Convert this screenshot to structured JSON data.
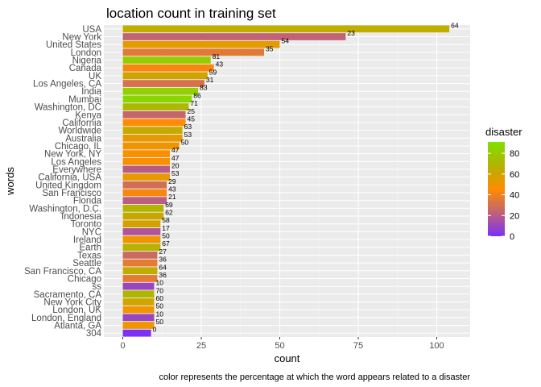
{
  "chart_data": {
    "type": "bar",
    "orientation": "horizontal",
    "title": "location count in training set",
    "xlabel": "count",
    "ylabel": "words",
    "caption": "color represents the percentage at which the word appears related to a disaster",
    "xlim": [
      0,
      110
    ],
    "xticks": [
      0,
      25,
      50,
      75,
      100
    ],
    "grid": true,
    "legend": {
      "title": "disaster",
      "placement": "right",
      "type": "colorbar",
      "ticks": [
        0,
        20,
        40,
        60,
        80
      ],
      "range": [
        0,
        91
      ],
      "colors": [
        "#7b2ff7",
        "#c06277",
        "#ff8c00",
        "#b3b300",
        "#80e000"
      ]
    },
    "bars": [
      {
        "word": "USA",
        "count": 104,
        "disaster": 64
      },
      {
        "word": "New York",
        "count": 71,
        "disaster": 23
      },
      {
        "word": "United States",
        "count": 50,
        "disaster": 54
      },
      {
        "word": "London",
        "count": 45,
        "disaster": 35
      },
      {
        "word": "Nigeria",
        "count": 28,
        "disaster": 81
      },
      {
        "word": "Canada",
        "count": 29,
        "disaster": 43
      },
      {
        "word": "UK",
        "count": 27,
        "disaster": 59
      },
      {
        "word": "Los Angeles, CA",
        "count": 26,
        "disaster": 31
      },
      {
        "word": "India",
        "count": 24,
        "disaster": 83
      },
      {
        "word": "Mumbai",
        "count": 22,
        "disaster": 86
      },
      {
        "word": "Washington, DC",
        "count": 21,
        "disaster": 71
      },
      {
        "word": "Kenya",
        "count": 20,
        "disaster": 25
      },
      {
        "word": "California",
        "count": 20,
        "disaster": 45
      },
      {
        "word": "Worldwide",
        "count": 19,
        "disaster": 63
      },
      {
        "word": "Australia",
        "count": 19,
        "disaster": 53
      },
      {
        "word": "Chicago, IL",
        "count": 18,
        "disaster": 50
      },
      {
        "word": "New York, NY",
        "count": 15,
        "disaster": 47
      },
      {
        "word": "Los Angeles",
        "count": 15,
        "disaster": 47
      },
      {
        "word": "Everywhere",
        "count": 15,
        "disaster": 20
      },
      {
        "word": "California, USA",
        "count": 15,
        "disaster": 53
      },
      {
        "word": "United Kingdom",
        "count": 14,
        "disaster": 29
      },
      {
        "word": "San Francisco",
        "count": 14,
        "disaster": 43
      },
      {
        "word": "Florida",
        "count": 14,
        "disaster": 21
      },
      {
        "word": "Washington, D.C.",
        "count": 13,
        "disaster": 69
      },
      {
        "word": "Indonesia",
        "count": 13,
        "disaster": 62
      },
      {
        "word": "Toronto",
        "count": 12,
        "disaster": 58
      },
      {
        "word": "NYC",
        "count": 12,
        "disaster": 17
      },
      {
        "word": "Ireland",
        "count": 12,
        "disaster": 50
      },
      {
        "word": "Earth",
        "count": 12,
        "disaster": 67
      },
      {
        "word": "Texas",
        "count": 11,
        "disaster": 27
      },
      {
        "word": "Seattle",
        "count": 11,
        "disaster": 36
      },
      {
        "word": "San Francisco, CA",
        "count": 11,
        "disaster": 64
      },
      {
        "word": "Chicago",
        "count": 11,
        "disaster": 36
      },
      {
        "word": "ss",
        "count": 10,
        "disaster": 10
      },
      {
        "word": "Sacramento, CA",
        "count": 10,
        "disaster": 70
      },
      {
        "word": "New York City",
        "count": 10,
        "disaster": 60
      },
      {
        "word": "London, UK",
        "count": 10,
        "disaster": 50
      },
      {
        "word": "London, England",
        "count": 10,
        "disaster": 10
      },
      {
        "word": "Atlanta, GA",
        "count": 10,
        "disaster": 50
      },
      {
        "word": "304",
        "count": 9,
        "disaster": 0
      }
    ]
  }
}
